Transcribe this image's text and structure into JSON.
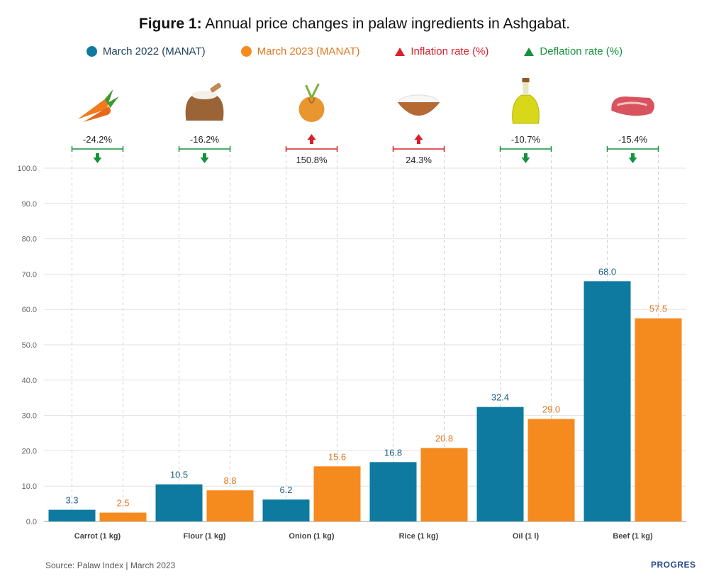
{
  "title_bold": "Figure 1:",
  "title_rest": " Annual price changes in palaw ingredients in Ashgabat.",
  "legend": [
    {
      "label": "March 2022 (MANAT)",
      "kind": "dot",
      "color": "#0e7aa0",
      "text_color": "#1c3e5c"
    },
    {
      "label": "March 2023 (MANAT)",
      "kind": "dot",
      "color": "#f58a1f",
      "text_color": "#e07820"
    },
    {
      "label": "Inflation rate (%)",
      "kind": "tri",
      "color": "#d9202b",
      "text_color": "#d9202b"
    },
    {
      "label": "Deflation rate (%)",
      "kind": "tri",
      "color": "#14923c",
      "text_color": "#14923c"
    }
  ],
  "colors": {
    "series_2022": "#0e7aa0",
    "series_2023": "#f58a1f",
    "inflation": "#d9202b",
    "deflation": "#14923c"
  },
  "icons": [
    "carrot-icon",
    "flour-sack-icon",
    "onion-icon",
    "rice-bowl-icon",
    "oil-bottle-icon",
    "beef-icon"
  ],
  "source": "Source: Palaw Index | March 2023",
  "brand": "PROGRES",
  "chart_data": {
    "type": "bar",
    "categories": [
      "Carrot (1 kg)",
      "Flour (1 kg)",
      "Onion (1 kg)",
      "Rice (1 kg)",
      "Oil (1 l)",
      "Beef (1 kg)"
    ],
    "series": [
      {
        "name": "March 2022 (MANAT)",
        "values": [
          3.3,
          10.5,
          6.2,
          16.8,
          32.4,
          68.0
        ],
        "labels": [
          "3.3",
          "10.5",
          "6.2",
          "16.8",
          "32.4",
          "68.0"
        ]
      },
      {
        "name": "March 2023 (MANAT)",
        "values": [
          2.5,
          8.8,
          15.6,
          20.8,
          29.0,
          57.5
        ],
        "labels": [
          "2.5",
          "8.8",
          "15.6",
          "20.8",
          "29.0",
          "57.5"
        ]
      }
    ],
    "changes": [
      {
        "label": "-24.2%",
        "type": "deflation"
      },
      {
        "label": "-16.2%",
        "type": "deflation"
      },
      {
        "label": "150.8%",
        "type": "inflation"
      },
      {
        "label": "24.3%",
        "type": "inflation"
      },
      {
        "label": "-10.7%",
        "type": "deflation"
      },
      {
        "label": "-15.4%",
        "type": "deflation"
      }
    ],
    "ylim": [
      0,
      100
    ],
    "yticks": [
      "0.0",
      "10.0",
      "20.0",
      "30.0",
      "40.0",
      "50.0",
      "60.0",
      "70.0",
      "80.0",
      "90.0",
      "100.0"
    ],
    "grid": true
  }
}
